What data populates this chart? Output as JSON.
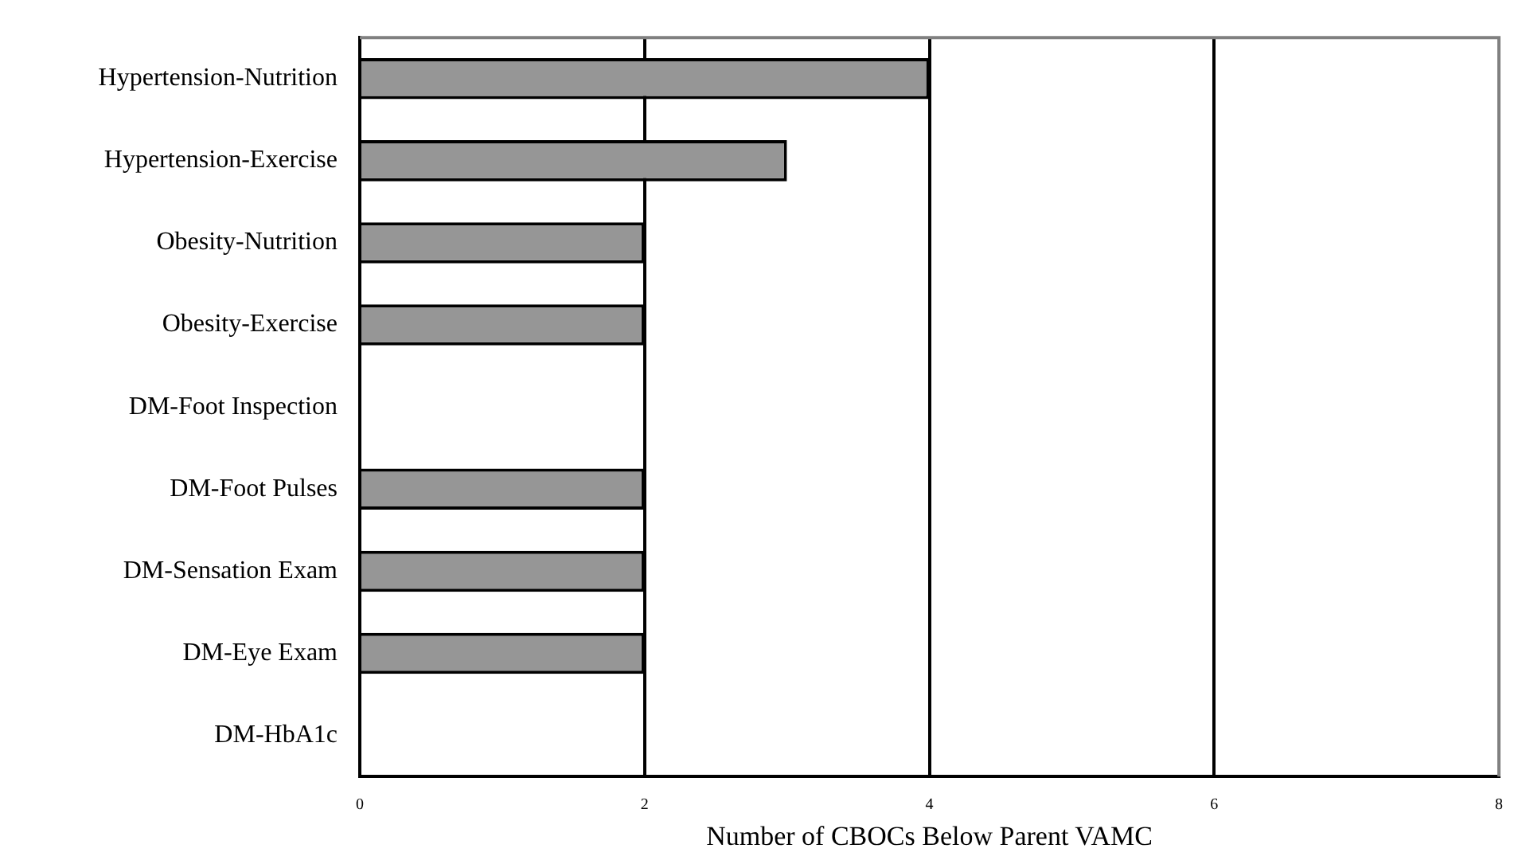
{
  "chart_data": {
    "type": "bar",
    "orientation": "horizontal",
    "xlabel": "Number of CBOCs Below Parent VAMC",
    "categories": [
      "Hypertension-Nutrition",
      "Hypertension-Exercise",
      "Obesity-Nutrition",
      "Obesity-Exercise",
      "DM-Foot Inspection",
      "DM-Foot Pulses",
      "DM-Sensation Exam",
      "DM-Eye Exam",
      "DM-HbA1c"
    ],
    "values": [
      4,
      3,
      2,
      2,
      0,
      2,
      2,
      2,
      0
    ],
    "color": "#969696",
    "xlim": [
      0,
      8
    ],
    "xticks": [
      0,
      2,
      4,
      6,
      8
    ],
    "grid": "x",
    "legend": false
  }
}
